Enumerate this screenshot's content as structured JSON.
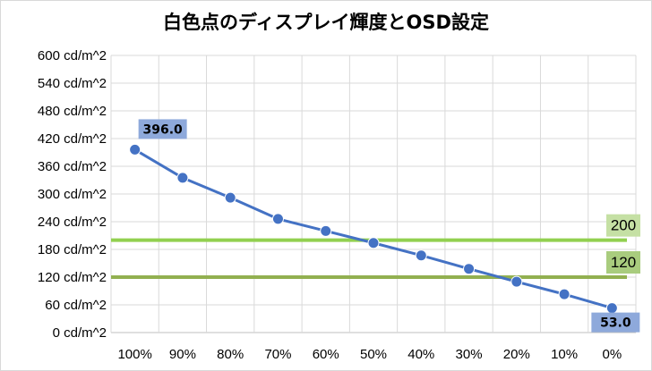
{
  "chart_data": {
    "type": "line",
    "title": "白色点のディスプレイ輝度とOSD設定",
    "categories": [
      "100%",
      "90%",
      "80%",
      "70%",
      "60%",
      "50%",
      "40%",
      "30%",
      "20%",
      "10%",
      "0%"
    ],
    "series": [
      {
        "values": [
          396.0,
          335,
          292,
          246,
          220,
          194,
          167,
          138,
          110,
          83,
          53.0
        ],
        "color": "#4472C4"
      }
    ],
    "data_labels": [
      {
        "index": 0,
        "text": "396.0"
      },
      {
        "index": 10,
        "text": "53.0"
      }
    ],
    "data_label_bg": "#8EA9DB",
    "reference_lines": [
      {
        "value": 200,
        "label": "200",
        "color": "#92D050",
        "label_bg": "#C5E0A4"
      },
      {
        "value": 120,
        "label": "120",
        "color": "#92B050",
        "label_bg": "#A9CC7E"
      }
    ],
    "y_ticks": [
      "0 cd/m^2",
      "60 cd/m^2",
      "120 cd/m^2",
      "180 cd/m^2",
      "240 cd/m^2",
      "300 cd/m^2",
      "360 cd/m^2",
      "420 cd/m^2",
      "480 cd/m^2",
      "540 cd/m^2",
      "600 cd/m^2"
    ],
    "ylim": [
      0,
      600
    ],
    "y_step": 60,
    "grid": true,
    "legend": "none",
    "xlabel": "",
    "ylabel": ""
  }
}
